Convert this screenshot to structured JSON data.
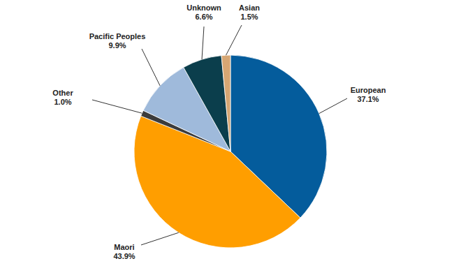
{
  "chart_data": {
    "type": "pie",
    "categories": [
      "European",
      "Maori",
      "Other",
      "Pacific Peoples",
      "Unknown",
      "Asian"
    ],
    "values": [
      37.1,
      43.9,
      1.0,
      9.9,
      6.6,
      1.5
    ],
    "value_labels": [
      "37.1%",
      "43.9%",
      "1.0%",
      "9.9%",
      "6.6%",
      "1.5%"
    ],
    "colors": [
      "#045c9c",
      "#ff9e00",
      "#3c3c3c",
      "#9fbadb",
      "#0b3e4c",
      "#d6a673"
    ],
    "data_labels": true
  }
}
